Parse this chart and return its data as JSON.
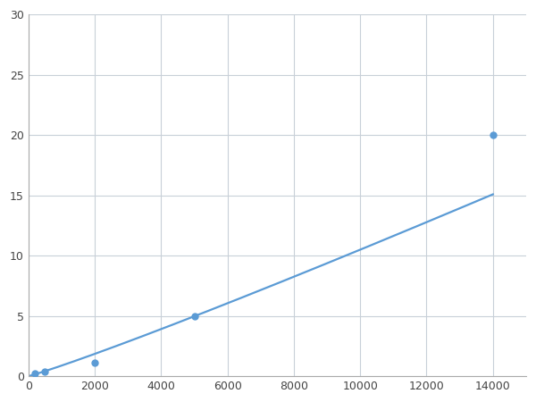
{
  "x_data": [
    200,
    500,
    2000,
    5000,
    14000
  ],
  "y_data": [
    0.2,
    0.4,
    1.1,
    5.0,
    20.0
  ],
  "line_color": "#5b9bd5",
  "marker_color": "#5b9bd5",
  "marker_size": 5,
  "line_width": 1.6,
  "xlim": [
    0,
    15000
  ],
  "ylim": [
    0,
    30
  ],
  "xticks": [
    0,
    2000,
    4000,
    6000,
    8000,
    10000,
    12000,
    14000
  ],
  "yticks": [
    0,
    5,
    10,
    15,
    20,
    25,
    30
  ],
  "grid_color": "#c8d0d8",
  "background_color": "#ffffff",
  "fig_width": 6.0,
  "fig_height": 4.5,
  "dpi": 100
}
